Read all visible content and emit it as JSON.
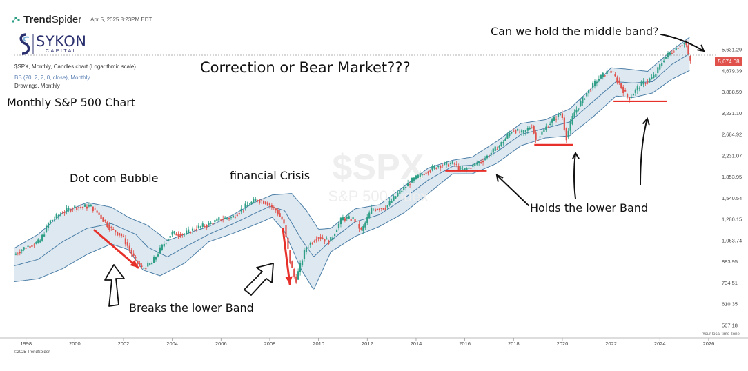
{
  "header": {
    "brand_bold": "Trend",
    "brand_light": "Spider",
    "timestamp": "Apr 5, 2025 8:23PM EDT",
    "logo_name": "SYKON",
    "logo_sub": "CAPITAL",
    "chart_desc": "$SPX, Monthly, Candles chart (Logarithmic scale)",
    "indicator": "BB (20, 2, 2, 0, close), Monthly",
    "drawings": "Drawings, Monthly"
  },
  "annotations": {
    "main_title": "Correction or Bear Market???",
    "chart_label": "Monthly S&P 500 Chart",
    "dotcom": "Dot com Bubble",
    "financial": "financial Crisis",
    "breaks": "Breaks the lower Band",
    "holds": "Holds the lower Band",
    "middle": "Can we hold the middle band?"
  },
  "watermark": {
    "symbol": "$SPX",
    "name": "S&P 500 index"
  },
  "footer": {
    "copyright": "©2025 TrendSpider",
    "timezone": "Your local time zone"
  },
  "colors": {
    "up": "#2e9e86",
    "down": "#e0514b",
    "band_fill": "#dde8f0",
    "band_line": "#4a7da6",
    "marker": "#e8302a",
    "price_badge": "#e0514b",
    "ref_line": "#999999"
  },
  "chart_data": {
    "type": "line",
    "title": "",
    "xlabel": "",
    "ylabel": "",
    "scale": "log",
    "x_ticks": [
      "1998",
      "2000",
      "2002",
      "2004",
      "2006",
      "2008",
      "2010",
      "2012",
      "2014",
      "2016",
      "2018",
      "2020",
      "2022",
      "2024",
      "2026"
    ],
    "y_ticks": [
      "5,631.29",
      "4,679.39",
      "3,888.59",
      "3,231.10",
      "2,684.92",
      "2,231.07",
      "1,853.95",
      "1,540.54",
      "1,280.15",
      "1,063.74",
      "883.95",
      "734.51",
      "610.35",
      "507.18"
    ],
    "last_price": "5,074.08",
    "xlim": [
      1997.5,
      2026.2
    ],
    "ylim": [
      470,
      6900
    ],
    "grid": false,
    "series": [
      {
        "values": [
          [
            1997.5,
            930
          ],
          [
            1998.0,
            1000
          ],
          [
            1998.6,
            1050
          ],
          [
            1999.0,
            1250
          ],
          [
            1999.5,
            1350
          ],
          [
            2000.0,
            1420
          ],
          [
            2000.7,
            1430
          ],
          [
            2001.0,
            1340
          ],
          [
            2001.5,
            1180
          ],
          [
            2002.0,
            1100
          ],
          [
            2002.5,
            900
          ],
          [
            2002.8,
            830
          ],
          [
            2003.2,
            870
          ],
          [
            2003.6,
            1000
          ],
          [
            2004.0,
            1130
          ],
          [
            2004.5,
            1120
          ],
          [
            2005.0,
            1180
          ],
          [
            2005.5,
            1220
          ],
          [
            2006.0,
            1280
          ],
          [
            2006.5,
            1300
          ],
          [
            2007.0,
            1420
          ],
          [
            2007.5,
            1520
          ],
          [
            2007.9,
            1480
          ],
          [
            2008.3,
            1380
          ],
          [
            2008.6,
            1250
          ],
          [
            2008.85,
            900
          ],
          [
            2009.1,
            740
          ],
          [
            2009.2,
            800
          ],
          [
            2009.5,
            990
          ],
          [
            2010.0,
            1100
          ],
          [
            2010.5,
            1050
          ],
          [
            2011.0,
            1290
          ],
          [
            2011.5,
            1280
          ],
          [
            2011.8,
            1150
          ],
          [
            2012.2,
            1390
          ],
          [
            2012.8,
            1420
          ],
          [
            2013.3,
            1600
          ],
          [
            2013.9,
            1800
          ],
          [
            2014.5,
            1950
          ],
          [
            2015.0,
            2050
          ],
          [
            2015.6,
            2080
          ],
          [
            2015.9,
            1950
          ],
          [
            2016.2,
            2000
          ],
          [
            2016.8,
            2150
          ],
          [
            2017.5,
            2450
          ],
          [
            2018.0,
            2800
          ],
          [
            2018.4,
            2700
          ],
          [
            2018.8,
            2900
          ],
          [
            2018.95,
            2550
          ],
          [
            2019.5,
            2950
          ],
          [
            2020.0,
            3250
          ],
          [
            2020.2,
            2600
          ],
          [
            2020.5,
            3200
          ],
          [
            2021.0,
            3800
          ],
          [
            2021.5,
            4350
          ],
          [
            2022.0,
            4700
          ],
          [
            2022.4,
            4150
          ],
          [
            2022.75,
            3650
          ],
          [
            2023.2,
            4100
          ],
          [
            2023.8,
            4450
          ],
          [
            2024.2,
            5200
          ],
          [
            2024.8,
            5800
          ],
          [
            2025.1,
            6000
          ],
          [
            2025.25,
            5074
          ]
        ]
      },
      {
        "values": [
          [
            1997.5,
            850
          ],
          [
            1998.5,
            900
          ],
          [
            1999.5,
            1050
          ],
          [
            2000.5,
            1180
          ],
          [
            2001.5,
            1230
          ],
          [
            2002.5,
            1120
          ],
          [
            2003.0,
            1000
          ],
          [
            2003.8,
            920
          ],
          [
            2004.5,
            1000
          ],
          [
            2005.5,
            1120
          ],
          [
            2006.5,
            1230
          ],
          [
            2007.5,
            1360
          ],
          [
            2008.0,
            1430
          ],
          [
            2008.6,
            1380
          ],
          [
            2009.3,
            1070
          ],
          [
            2009.8,
            920
          ],
          [
            2010.5,
            1060
          ],
          [
            2011.5,
            1250
          ],
          [
            2012.5,
            1330
          ],
          [
            2013.5,
            1530
          ],
          [
            2014.5,
            1800
          ],
          [
            2015.5,
            2030
          ],
          [
            2016.3,
            2050
          ],
          [
            2017.3,
            2300
          ],
          [
            2018.3,
            2680
          ],
          [
            2019.3,
            2830
          ],
          [
            2020.3,
            2990
          ],
          [
            2021.3,
            3600
          ],
          [
            2022.2,
            4250
          ],
          [
            2022.9,
            4200
          ],
          [
            2023.7,
            4250
          ],
          [
            2024.5,
            4950
          ],
          [
            2025.25,
            5450
          ]
        ]
      },
      {
        "values": [
          [
            1997.5,
            990
          ],
          [
            1998.5,
            1120
          ],
          [
            1999.5,
            1350
          ],
          [
            2000.5,
            1480
          ],
          [
            2001.5,
            1420
          ],
          [
            2002.2,
            1300
          ],
          [
            2003.0,
            1210
          ],
          [
            2003.8,
            1060
          ],
          [
            2004.5,
            1120
          ],
          [
            2005.5,
            1200
          ],
          [
            2006.5,
            1330
          ],
          [
            2007.5,
            1500
          ],
          [
            2008.1,
            1580
          ],
          [
            2008.9,
            1600
          ],
          [
            2009.5,
            1380
          ],
          [
            2010.0,
            1170
          ],
          [
            2010.5,
            1180
          ],
          [
            2011.5,
            1400
          ],
          [
            2012.5,
            1450
          ],
          [
            2013.5,
            1700
          ],
          [
            2014.5,
            2000
          ],
          [
            2015.5,
            2140
          ],
          [
            2016.3,
            2200
          ],
          [
            2017.3,
            2520
          ],
          [
            2018.3,
            2950
          ],
          [
            2019.3,
            3050
          ],
          [
            2020.3,
            3350
          ],
          [
            2021.3,
            4100
          ],
          [
            2022.0,
            4800
          ],
          [
            2022.6,
            4750
          ],
          [
            2023.5,
            4650
          ],
          [
            2024.5,
            5600
          ],
          [
            2025.25,
            6300
          ]
        ]
      },
      {
        "values": [
          [
            1997.5,
            740
          ],
          [
            1998.5,
            760
          ],
          [
            1999.5,
            830
          ],
          [
            2000.5,
            940
          ],
          [
            2001.5,
            1030
          ],
          [
            2002.2,
            980
          ],
          [
            2002.8,
            820
          ],
          [
            2003.5,
            780
          ],
          [
            2004.5,
            870
          ],
          [
            2005.5,
            1050
          ],
          [
            2006.5,
            1130
          ],
          [
            2007.5,
            1230
          ],
          [
            2008.1,
            1300
          ],
          [
            2008.6,
            1150
          ],
          [
            2009.3,
            820
          ],
          [
            2009.8,
            690
          ],
          [
            2010.5,
            960
          ],
          [
            2011.5,
            1100
          ],
          [
            2012.5,
            1200
          ],
          [
            2013.5,
            1350
          ],
          [
            2014.5,
            1600
          ],
          [
            2015.5,
            1900
          ],
          [
            2016.3,
            1900
          ],
          [
            2017.3,
            2080
          ],
          [
            2018.3,
            2430
          ],
          [
            2019.3,
            2600
          ],
          [
            2020.3,
            2650
          ],
          [
            2021.3,
            3150
          ],
          [
            2022.2,
            3750
          ],
          [
            2022.9,
            3700
          ],
          [
            2023.7,
            3850
          ],
          [
            2024.5,
            4350
          ],
          [
            2025.25,
            4700
          ]
        ]
      }
    ]
  }
}
